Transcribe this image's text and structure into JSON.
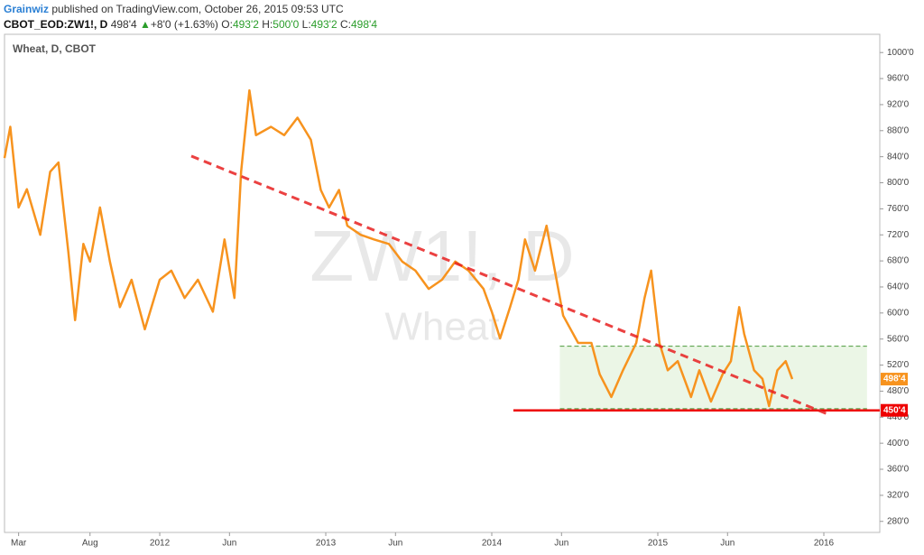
{
  "header": {
    "author": "Grainwiz",
    "published": "published on TradingView.com, October 26, 2015 09:53 UTC",
    "symbol": "CBOT_EOD:ZW1!, D",
    "last": "498'4",
    "arrow": "▲",
    "change": "+8'0 (+1.63%)",
    "ohlc": [
      {
        "key": "O:",
        "value": "493'2"
      },
      {
        "key": "H:",
        "value": "500'0"
      },
      {
        "key": "L:",
        "value": "493'2"
      },
      {
        "key": "C:",
        "value": "498'4"
      }
    ]
  },
  "chart_data": {
    "type": "line",
    "legend": "Wheat, D, CBOT",
    "watermark": [
      "ZW1!, D",
      "Wheat"
    ],
    "x": [
      2011.065,
      2011.1,
      2011.15,
      2011.2,
      2011.28,
      2011.34,
      2011.39,
      2011.45,
      2011.49,
      2011.54,
      2011.58,
      2011.64,
      2011.7,
      2011.76,
      2011.83,
      2011.91,
      2012.0,
      2012.07,
      2012.15,
      2012.23,
      2012.32,
      2012.39,
      2012.45,
      2012.49,
      2012.54,
      2012.58,
      2012.67,
      2012.75,
      2012.83,
      2012.91,
      2012.97,
      2013.02,
      2013.08,
      2013.13,
      2013.21,
      2013.29,
      2013.38,
      2013.46,
      2013.54,
      2013.62,
      2013.7,
      2013.78,
      2013.86,
      2013.95,
      2014.0,
      2014.05,
      2014.11,
      2014.16,
      2014.2,
      2014.26,
      2014.33,
      2014.38,
      2014.43,
      2014.52,
      2014.6,
      2014.65,
      2014.72,
      2014.79,
      2014.87,
      2014.92,
      2014.96,
      2015.01,
      2015.06,
      2015.12,
      2015.2,
      2015.25,
      2015.32,
      2015.39,
      2015.44,
      2015.49,
      2015.52,
      2015.58,
      2015.63,
      2015.67,
      2015.72,
      2015.77,
      2015.81
    ],
    "series": [
      {
        "name": "Wheat",
        "color": "#f7931e",
        "values": [
          838,
          886,
          762,
          790,
          720,
          817,
          831,
          693,
          589,
          706,
          679,
          762,
          679,
          609,
          651,
          575,
          651,
          665,
          623,
          651,
          602,
          713,
          623,
          817,
          942,
          873,
          886,
          873,
          900,
          866,
          789,
          762,
          789,
          734,
          720,
          713,
          706,
          679,
          665,
          637,
          651,
          679,
          665,
          637,
          602,
          561,
          609,
          651,
          713,
          665,
          734,
          665,
          596,
          554,
          554,
          506,
          471,
          512,
          554,
          623,
          665,
          554,
          512,
          526,
          471,
          512,
          464,
          506,
          526,
          609,
          568,
          512,
          499,
          457,
          512,
          526,
          498.5
        ]
      }
    ],
    "xlim": [
      2011.065,
      2016.337
    ],
    "xticks": [
      {
        "value": 2011.15,
        "label": "Mar"
      },
      {
        "value": 2011.58,
        "label": "Aug"
      },
      {
        "value": 2012.0,
        "label": "2012"
      },
      {
        "value": 2012.42,
        "label": "Jun"
      },
      {
        "value": 2013.0,
        "label": "2013"
      },
      {
        "value": 2013.42,
        "label": "Jun"
      },
      {
        "value": 2014.0,
        "label": "2014"
      },
      {
        "value": 2014.42,
        "label": "Jun"
      },
      {
        "value": 2015.0,
        "label": "2015"
      },
      {
        "value": 2015.42,
        "label": "Jun"
      },
      {
        "value": 2016.0,
        "label": "2016"
      }
    ],
    "ylim": [
      263,
      1028
    ],
    "yticks": [
      {
        "value": 280,
        "label": "280'0"
      },
      {
        "value": 320,
        "label": "320'0"
      },
      {
        "value": 360,
        "label": "360'0"
      },
      {
        "value": 400,
        "label": "400'0"
      },
      {
        "value": 440,
        "label": "440'0"
      },
      {
        "value": 480,
        "label": "480'0"
      },
      {
        "value": 520,
        "label": "520'0"
      },
      {
        "value": 560,
        "label": "560'0"
      },
      {
        "value": 600,
        "label": "600'0"
      },
      {
        "value": 640,
        "label": "640'0"
      },
      {
        "value": 680,
        "label": "680'0"
      },
      {
        "value": 720,
        "label": "720'0"
      },
      {
        "value": 760,
        "label": "760'0"
      },
      {
        "value": 800,
        "label": "800'0"
      },
      {
        "value": 840,
        "label": "840'0"
      },
      {
        "value": 880,
        "label": "880'0"
      },
      {
        "value": 920,
        "label": "920'0"
      },
      {
        "value": 960,
        "label": "960'0"
      },
      {
        "value": 1000,
        "label": "1000'0"
      }
    ],
    "last_price": {
      "value": 498.5,
      "label": "498'4"
    },
    "support": {
      "value": 450.5,
      "label": "450'4",
      "x": [
        2014.13,
        2016.337
      ]
    },
    "trendline": {
      "x": [
        2012.19,
        2016.04
      ],
      "y": [
        841,
        443
      ]
    },
    "range_box": {
      "xlim": [
        2014.41,
        2016.26
      ],
      "ylim": [
        453,
        549
      ]
    }
  }
}
